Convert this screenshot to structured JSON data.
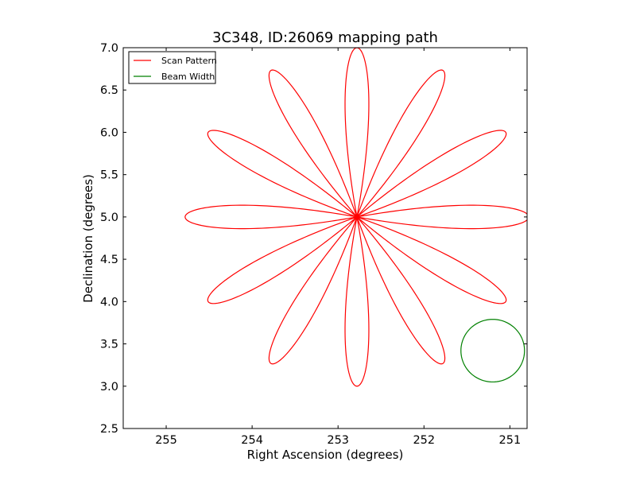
{
  "chart_data": {
    "type": "line",
    "title": "3C348, ID:26069 mapping path",
    "xlabel": "Right Ascension (degrees)",
    "ylabel": "Declination (degrees)",
    "xlim": [
      255.5,
      250.8
    ],
    "ylim": [
      2.5,
      7.0
    ],
    "x_inverted": true,
    "x_ticks": [
      255,
      254,
      253,
      252,
      251
    ],
    "x_tick_labels": [
      "255",
      "254",
      "253",
      "252",
      "251"
    ],
    "y_ticks": [
      2.5,
      3.0,
      3.5,
      4.0,
      4.5,
      5.0,
      5.5,
      6.0,
      6.5,
      7.0
    ],
    "y_tick_labels": [
      "2.5",
      "3.0",
      "3.5",
      "4.0",
      "4.5",
      "5.0",
      "5.5",
      "6.0",
      "6.5",
      "7.0"
    ],
    "grid": false,
    "legend_position": "top-left",
    "series": [
      {
        "name": "Scan Pattern",
        "color": "#ff0000",
        "kind": "rose-scan",
        "center": [
          252.78,
          5.0
        ],
        "petal_count": 12,
        "petal_length_deg": 2.0,
        "petal_half_width_deg": 0.18,
        "first_petal_angle_deg": 90
      },
      {
        "name": "Beam Width",
        "color": "#008000",
        "kind": "circle",
        "center": [
          251.2,
          3.42
        ],
        "radius_deg": 0.37
      }
    ]
  }
}
